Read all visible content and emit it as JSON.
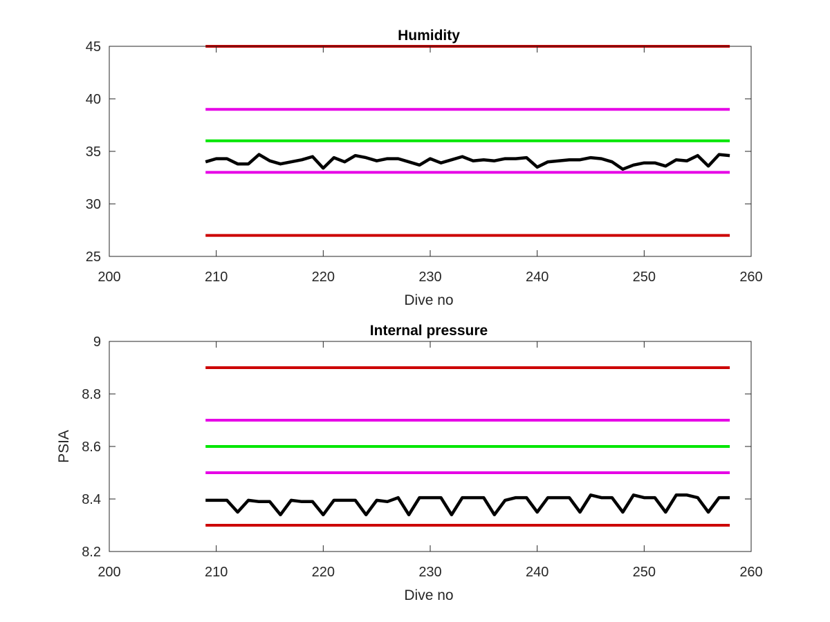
{
  "chart_data": [
    {
      "type": "line",
      "title": "Humidity",
      "xlabel": "Dive no",
      "ylabel": "",
      "xlim": [
        200,
        260
      ],
      "ylim": [
        25,
        45
      ],
      "xticks": [
        200,
        210,
        220,
        230,
        240,
        250,
        260
      ],
      "yticks": [
        25,
        30,
        35,
        40,
        45
      ],
      "grid": false,
      "series": [
        {
          "color": "#cc0000",
          "x": [
            209,
            258
          ],
          "values": [
            45,
            45
          ]
        },
        {
          "color": "#e600e6",
          "x": [
            209,
            258
          ],
          "values": [
            39,
            39
          ]
        },
        {
          "color": "#00e600",
          "x": [
            209,
            258
          ],
          "values": [
            36,
            36
          ]
        },
        {
          "color": "#e600e6",
          "x": [
            209,
            258
          ],
          "values": [
            33,
            33
          ]
        },
        {
          "color": "#cc0000",
          "x": [
            209,
            258
          ],
          "values": [
            27,
            27
          ]
        },
        {
          "color": "#000000",
          "x": [
            209,
            210,
            211,
            212,
            213,
            214,
            215,
            216,
            217,
            218,
            219,
            220,
            221,
            222,
            223,
            224,
            225,
            226,
            227,
            228,
            229,
            230,
            231,
            232,
            233,
            234,
            235,
            236,
            237,
            238,
            239,
            240,
            241,
            242,
            243,
            244,
            245,
            246,
            247,
            248,
            249,
            250,
            251,
            252,
            253,
            254,
            255,
            256,
            257,
            258
          ],
          "values": [
            34.0,
            34.3,
            34.3,
            33.8,
            33.8,
            34.7,
            34.1,
            33.8,
            34.0,
            34.2,
            34.5,
            33.4,
            34.4,
            34.0,
            34.6,
            34.4,
            34.1,
            34.3,
            34.3,
            34.0,
            33.7,
            34.3,
            33.9,
            34.2,
            34.5,
            34.1,
            34.2,
            34.1,
            34.3,
            34.3,
            34.4,
            33.5,
            34.0,
            34.1,
            34.2,
            34.2,
            34.4,
            34.3,
            34.0,
            33.3,
            33.7,
            33.9,
            33.9,
            33.6,
            34.2,
            34.1,
            34.6,
            33.6,
            34.7,
            34.6
          ]
        }
      ]
    },
    {
      "type": "line",
      "title": "Internal pressure",
      "xlabel": "Dive no",
      "ylabel": "PSIA",
      "xlim": [
        200,
        260
      ],
      "ylim": [
        8.2,
        9
      ],
      "xticks": [
        200,
        210,
        220,
        230,
        240,
        250,
        260
      ],
      "yticks": [
        8.2,
        8.4,
        8.6,
        8.8,
        9
      ],
      "grid": false,
      "series": [
        {
          "color": "#cc0000",
          "x": [
            209,
            258
          ],
          "values": [
            8.9,
            8.9
          ]
        },
        {
          "color": "#e600e6",
          "x": [
            209,
            258
          ],
          "values": [
            8.7,
            8.7
          ]
        },
        {
          "color": "#00e600",
          "x": [
            209,
            258
          ],
          "values": [
            8.6,
            8.6
          ]
        },
        {
          "color": "#e600e6",
          "x": [
            209,
            258
          ],
          "values": [
            8.5,
            8.5
          ]
        },
        {
          "color": "#cc0000",
          "x": [
            209,
            258
          ],
          "values": [
            8.3,
            8.3
          ]
        },
        {
          "color": "#000000",
          "x": [
            209,
            210,
            211,
            212,
            213,
            214,
            215,
            216,
            217,
            218,
            219,
            220,
            221,
            222,
            223,
            224,
            225,
            226,
            227,
            228,
            229,
            230,
            231,
            232,
            233,
            234,
            235,
            236,
            237,
            238,
            239,
            240,
            241,
            242,
            243,
            244,
            245,
            246,
            247,
            248,
            249,
            250,
            251,
            252,
            253,
            254,
            255,
            256,
            257,
            258
          ],
          "values": [
            8.395,
            8.395,
            8.395,
            8.35,
            8.395,
            8.39,
            8.39,
            8.34,
            8.395,
            8.39,
            8.39,
            8.34,
            8.395,
            8.395,
            8.395,
            8.34,
            8.395,
            8.39,
            8.405,
            8.34,
            8.405,
            8.405,
            8.405,
            8.34,
            8.405,
            8.405,
            8.405,
            8.34,
            8.395,
            8.405,
            8.405,
            8.35,
            8.405,
            8.405,
            8.405,
            8.35,
            8.415,
            8.405,
            8.405,
            8.35,
            8.415,
            8.405,
            8.405,
            8.35,
            8.415,
            8.415,
            8.405,
            8.35,
            8.405,
            8.405
          ]
        }
      ]
    }
  ]
}
